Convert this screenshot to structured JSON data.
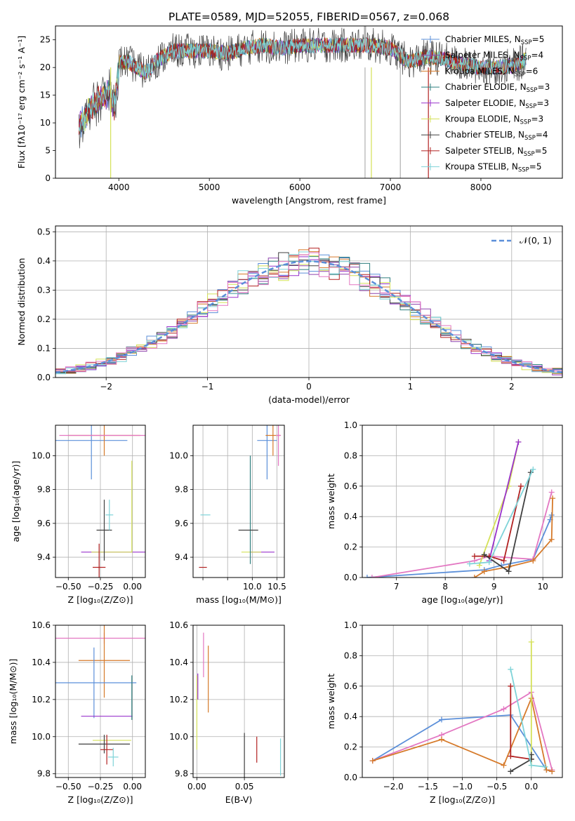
{
  "figure_title": "PLATE=0589, MJD=52055, FIBERID=0567, z=0.068",
  "colors": {
    "Chabrier MILES": "#5b8fd9",
    "Salpeter MILES": "#8e44ad",
    "Kroupa MILES": "#d67a2a",
    "Chabrier ELODIE": "#2f7f7f",
    "Salpeter ELODIE": "#9932cc",
    "Kroupa ELODIE": "#d4e157",
    "Chabrier STELIB": "#404040",
    "Salpeter STELIB": "#b22222",
    "Kroupa STELIB": "#7fd3d8",
    "pink": "#e377c2",
    "gauss": "#5b8fd9"
  },
  "chart_data": [
    {
      "id": "spectrum",
      "type": "line",
      "title": "PLATE=0589, MJD=52055, FIBERID=0567, z=0.068",
      "xlabel": "wavelength [Angstrom, rest frame]",
      "ylabel": "Flux [fλ10⁻¹⁷ erg cm⁻² s⁻¹ A⁻¹]",
      "xlim": [
        3300,
        8900
      ],
      "ylim": [
        0,
        27.5
      ],
      "xticks": [
        4000,
        5000,
        6000,
        7000,
        8000
      ],
      "yticks": [
        0,
        5,
        10,
        15,
        20,
        25
      ],
      "grid": false,
      "legend_position": "top-right",
      "legend": [
        {
          "label": "Chabrier MILES, N",
          "sub": "SSP",
          "tail": "=5",
          "color": "#5b8fd9"
        },
        {
          "label": "Salpeter MILES, N",
          "sub": "SSP",
          "tail": "=4",
          "color": "#8e44ad"
        },
        {
          "label": "Kroupa MILES, N",
          "sub": "SSP",
          "tail": "=6",
          "color": "#d67a2a"
        },
        {
          "label": "Chabrier ELODIE, N",
          "sub": "SSP",
          "tail": "=3",
          "color": "#2f7f7f"
        },
        {
          "label": "Salpeter ELODIE, N",
          "sub": "SSP",
          "tail": "=3",
          "color": "#9932cc"
        },
        {
          "label": "Kroupa ELODIE, N",
          "sub": "SSP",
          "tail": "=3",
          "color": "#d4e157"
        },
        {
          "label": "Chabrier STELIB, N",
          "sub": "SSP",
          "tail": "=4",
          "color": "#404040"
        },
        {
          "label": "Salpeter STELIB, N",
          "sub": "SSP",
          "tail": "=5",
          "color": "#b22222"
        },
        {
          "label": "Kroupa STELIB, N",
          "sub": "SSP",
          "tail": "=5",
          "color": "#7fd3d8"
        }
      ],
      "series_envelope": {
        "x": [
          3560,
          3650,
          3800,
          3900,
          3950,
          4000,
          4100,
          4200,
          4300,
          4400,
          4500,
          4600,
          4800,
          5000,
          5200,
          5400,
          5600,
          5800,
          6000,
          6200,
          6400,
          6600,
          6800,
          7000,
          7200,
          7400,
          7600,
          7800,
          8000,
          8200,
          8400,
          8500
        ],
        "y": [
          11,
          13,
          16,
          17,
          14,
          21,
          21,
          20,
          19,
          21,
          22,
          23,
          23,
          23,
          22.5,
          23.5,
          24,
          23.5,
          24,
          24,
          24,
          24,
          24,
          23.5,
          21,
          22,
          21.5,
          20.5,
          20,
          20,
          20.5,
          21.5
        ]
      }
    },
    {
      "id": "residuals",
      "type": "histogram",
      "xlabel": "(data-model)/error",
      "ylabel": "Normed distribution",
      "xlim": [
        -2.5,
        2.5
      ],
      "ylim": [
        0,
        0.52
      ],
      "xticks": [
        -2,
        -1,
        0,
        1,
        2
      ],
      "yticks": [
        0.0,
        0.1,
        0.2,
        0.3,
        0.4,
        0.5
      ],
      "grid": true,
      "legend_position": "top-right",
      "legend": [
        {
          "label": "𝒩(0, 1)",
          "color": "#5b8fd9"
        }
      ],
      "reference_curve": "N(0,1)"
    },
    {
      "id": "age_vs_Z",
      "type": "errorbar",
      "xlabel": "Z [log₁₀(Z/Z⊙)]",
      "ylabel": "age  [log₁₀(age/yr)]",
      "xlim": [
        -0.6,
        0.1
      ],
      "ylim": [
        9.28,
        10.18
      ],
      "xticks": [
        -0.5,
        -0.25,
        0.0
      ],
      "xticklabels": [
        "−0.50",
        "−0.25",
        "0.00"
      ],
      "yticks": [
        9.4,
        9.6,
        9.8,
        10.0
      ],
      "grid": true,
      "points": [
        {
          "x": -0.32,
          "y": 10.09,
          "xerr": 0.28,
          "yerr": 0.23,
          "color": "#5b8fd9"
        },
        {
          "x": -0.22,
          "y": 10.12,
          "xerr": 0.28,
          "yerr": 0.12,
          "color": "#d67a2a"
        },
        {
          "x": -0.22,
          "y": 10.12,
          "xerr": 0.35,
          "yerr": 0.0,
          "color": "#e377c2"
        },
        {
          "x": -0.12,
          "y": 9.43,
          "xerr": 0.28,
          "yerr": 0.0,
          "color": "#9932cc"
        },
        {
          "x": -0.16,
          "y": 9.43,
          "xerr": 0.16,
          "yerr": 0.0,
          "color": "#d4e157"
        },
        {
          "x": -0.005,
          "y": 9.7,
          "xerr": 0.0,
          "yerr": 0.27,
          "color": "#d4e157"
        },
        {
          "x": -0.22,
          "y": 9.56,
          "xerr": 0.06,
          "yerr": 0.18,
          "color": "#404040"
        },
        {
          "x": -0.26,
          "y": 9.34,
          "xerr": 0.05,
          "yerr": 0.14,
          "color": "#b22222"
        },
        {
          "x": -0.18,
          "y": 9.65,
          "xerr": 0.03,
          "yerr": 0.09,
          "color": "#7fd3d8"
        }
      ]
    },
    {
      "id": "age_vs_mass",
      "type": "errorbar",
      "xlabel": "mass [log₁₀(M/M⊙)]",
      "ylabel": "",
      "xlim": [
        8.8,
        10.65
      ],
      "ylim": [
        9.28,
        10.18
      ],
      "xticks": [
        9.0,
        9.5,
        10.0,
        10.5
      ],
      "xticklabels": [
        "",
        "",
        "10.0",
        "10.5"
      ],
      "yticks": [
        9.4,
        9.6,
        9.8,
        10.0
      ],
      "grid": true,
      "points": [
        {
          "x": 10.3,
          "y": 10.09,
          "xerr": 0.2,
          "yerr": 0.23,
          "color": "#5b8fd9"
        },
        {
          "x": 10.42,
          "y": 10.12,
          "xerr": 0.15,
          "yerr": 0.12,
          "color": "#d67a2a"
        },
        {
          "x": 10.53,
          "y": 10.12,
          "xerr": 0.05,
          "yerr": 0.18,
          "color": "#e377c2"
        },
        {
          "x": 10.2,
          "y": 9.43,
          "xerr": 0.25,
          "yerr": 0.0,
          "color": "#9932cc"
        },
        {
          "x": 9.98,
          "y": 9.43,
          "xerr": 0.2,
          "yerr": 0.0,
          "color": "#d4e157"
        },
        {
          "x": 9.96,
          "y": 9.68,
          "xerr": 0.0,
          "yerr": 0.32,
          "color": "#2f7f7f"
        },
        {
          "x": 9.92,
          "y": 9.56,
          "xerr": 0.2,
          "yerr": 0.0,
          "color": "#404040"
        },
        {
          "x": 9.0,
          "y": 9.34,
          "xerr": 0.08,
          "yerr": 0.0,
          "color": "#b22222"
        },
        {
          "x": 9.05,
          "y": 9.65,
          "xerr": 0.1,
          "yerr": 0.0,
          "color": "#7fd3d8"
        }
      ]
    },
    {
      "id": "massweight_vs_age",
      "type": "line",
      "xlabel": "age  [log₁₀(age/yr)]",
      "ylabel": "mass weight",
      "xlim": [
        6.3,
        10.4
      ],
      "ylim": [
        0,
        1.0
      ],
      "xticks": [
        7,
        8,
        9,
        10
      ],
      "yticks": [
        0.0,
        0.2,
        0.4,
        0.6,
        0.8,
        1.0
      ],
      "grid": true,
      "series": [
        {
          "x": [
            6.4,
            8.8,
            9.15,
            9.8,
            10.15,
            10.18
          ],
          "y": [
            0.0,
            0.05,
            0.08,
            0.12,
            0.38,
            0.41
          ],
          "color": "#5b8fd9"
        },
        {
          "x": [
            6.5,
            8.6,
            8.9,
            9.8,
            10.18
          ],
          "y": [
            0.0,
            0.11,
            0.14,
            0.12,
            0.56
          ],
          "color": "#e377c2"
        },
        {
          "x": [
            8.6,
            8.8,
            9.3,
            9.8,
            10.18,
            10.2
          ],
          "y": [
            0.0,
            0.04,
            0.07,
            0.11,
            0.25,
            0.52
          ],
          "color": "#d67a2a"
        },
        {
          "x": [
            8.7,
            9.3,
            9.5
          ],
          "y": [
            0.08,
            0.6,
            0.89
          ],
          "color": "#d4e157"
        },
        {
          "x": [
            8.9,
            9.5
          ],
          "y": [
            0.11,
            0.89
          ],
          "color": "#9932cc"
        },
        {
          "x": [
            8.6,
            8.9,
            9.2,
            9.55
          ],
          "y": [
            0.14,
            0.14,
            0.11,
            0.6
          ],
          "color": "#b22222"
        },
        {
          "x": [
            8.8,
            9.3,
            9.75
          ],
          "y": [
            0.15,
            0.04,
            0.69
          ],
          "color": "#404040"
        },
        {
          "x": [
            8.5,
            8.9,
            9.8
          ],
          "y": [
            0.09,
            0.1,
            0.71
          ],
          "color": "#7fd3d8"
        }
      ]
    },
    {
      "id": "mass_vs_Z",
      "type": "errorbar",
      "xlabel": "Z [log₁₀(Z/Z⊙)]",
      "ylabel": "mass [log₁₀(M/M⊙)]",
      "xlim": [
        -0.6,
        0.1
      ],
      "ylim": [
        9.78,
        10.6
      ],
      "xticks": [
        -0.5,
        -0.25,
        0.0
      ],
      "xticklabels": [
        "−0.50",
        "−0.25",
        "0.00"
      ],
      "yticks": [
        9.8,
        10.0,
        10.2,
        10.4,
        10.6
      ],
      "grid": true,
      "points": [
        {
          "x": -0.22,
          "y": 10.53,
          "xerr": 0.38,
          "yerr": 0.03,
          "color": "#e377c2"
        },
        {
          "x": -0.22,
          "y": 10.41,
          "xerr": 0.2,
          "yerr": 0.2,
          "color": "#d67a2a"
        },
        {
          "x": -0.3,
          "y": 10.29,
          "xerr": 0.33,
          "yerr": 0.19,
          "color": "#5b8fd9"
        },
        {
          "x": -0.2,
          "y": 10.11,
          "xerr": 0.2,
          "yerr": 0.0,
          "color": "#9932cc"
        },
        {
          "x": -0.16,
          "y": 9.98,
          "xerr": 0.15,
          "yerr": 0.0,
          "color": "#d4e157"
        },
        {
          "x": -0.005,
          "y": 10.21,
          "xerr": 0.0,
          "yerr": 0.12,
          "color": "#2f7f7f"
        },
        {
          "x": -0.22,
          "y": 9.96,
          "xerr": 0.2,
          "yerr": 0.05,
          "color": "#404040"
        },
        {
          "x": -0.2,
          "y": 9.93,
          "xerr": 0.05,
          "yerr": 0.08,
          "color": "#b22222"
        },
        {
          "x": -0.15,
          "y": 9.89,
          "xerr": 0.04,
          "yerr": 0.05,
          "color": "#7fd3d8"
        }
      ]
    },
    {
      "id": "mass_vs_ebv",
      "type": "errorbar",
      "xlabel": "E(B-V)",
      "ylabel": "",
      "xlim": [
        -0.004,
        0.092
      ],
      "ylim": [
        9.78,
        10.6
      ],
      "xticks": [
        0.0,
        0.05
      ],
      "xticklabels": [
        "0.00",
        "0.05"
      ],
      "yticks": [
        9.8,
        10.0,
        10.2,
        10.4,
        10.6
      ],
      "grid": true,
      "points": [
        {
          "x": 0.0,
          "y": 10.13,
          "xerr": 0.0,
          "yerr": 0.2,
          "color": "#d4e157"
        },
        {
          "x": 0.001,
          "y": 10.27,
          "xerr": 0.0,
          "yerr": 0.07,
          "color": "#9932cc"
        },
        {
          "x": 0.007,
          "y": 10.44,
          "xerr": 0.0,
          "yerr": 0.12,
          "color": "#e377c2"
        },
        {
          "x": 0.012,
          "y": 10.31,
          "xerr": 0.0,
          "yerr": 0.18,
          "color": "#d67a2a"
        },
        {
          "x": 0.05,
          "y": 9.9,
          "xerr": 0.0,
          "yerr": 0.12,
          "color": "#404040"
        },
        {
          "x": 0.063,
          "y": 9.93,
          "xerr": 0.0,
          "yerr": 0.07,
          "color": "#b22222"
        },
        {
          "x": 0.088,
          "y": 9.89,
          "xerr": 0.0,
          "yerr": 0.1,
          "color": "#7fd3d8"
        }
      ]
    },
    {
      "id": "massweight_vs_Z",
      "type": "line",
      "xlabel": "Z [log₁₀(Z/Z⊙)]",
      "ylabel": "mass weight",
      "xlim": [
        -2.45,
        0.45
      ],
      "ylim": [
        0,
        1.0
      ],
      "xticks": [
        -2.0,
        -1.5,
        -1.0,
        -0.5,
        0.0
      ],
      "xticklabels": [
        "−2.0",
        "−1.5",
        "−1.0",
        "−0.5",
        "0.0"
      ],
      "yticks": [
        0.0,
        0.2,
        0.4,
        0.6,
        0.8,
        1.0
      ],
      "grid": true,
      "series": [
        {
          "x": [
            -2.3,
            -1.3,
            -0.3,
            0.22,
            0.3
          ],
          "y": [
            0.11,
            0.38,
            0.41,
            0.05,
            0.04
          ],
          "color": "#5b8fd9"
        },
        {
          "x": [
            -2.3,
            -1.3,
            -0.4,
            0.0,
            0.3
          ],
          "y": [
            0.11,
            0.28,
            0.45,
            0.56,
            0.05
          ],
          "color": "#e377c2"
        },
        {
          "x": [
            -2.3,
            -1.3,
            -0.4,
            0.0,
            0.22,
            0.3
          ],
          "y": [
            0.11,
            0.25,
            0.08,
            0.52,
            0.05,
            0.04
          ],
          "color": "#d67a2a"
        },
        {
          "x": [
            0.0,
            0.0
          ],
          "y": [
            0.08,
            0.89
          ],
          "color": "#d4e157"
        },
        {
          "x": [
            -0.3,
            -0.3,
            0.0
          ],
          "y": [
            0.6,
            0.14,
            0.12
          ],
          "color": "#b22222"
        },
        {
          "x": [
            -0.3,
            0.0,
            0.0
          ],
          "y": [
            0.04,
            0.12,
            0.15
          ],
          "color": "#404040"
        },
        {
          "x": [
            -0.3,
            0.0,
            0.2
          ],
          "y": [
            0.71,
            0.08,
            0.07
          ],
          "color": "#7fd3d8"
        }
      ]
    }
  ]
}
